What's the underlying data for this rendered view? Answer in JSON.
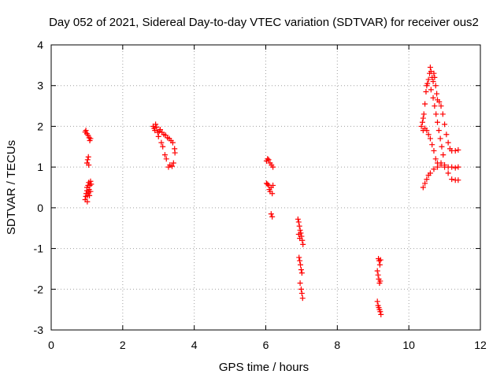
{
  "chart_data": {
    "type": "scatter",
    "title": "Day 052 of 2021, Sidereal Day-to-day VTEC variation (SDTVAR) for receiver ous2",
    "xlabel": "GPS time / hours",
    "ylabel": "SDTVAR / TECUs",
    "xlim": [
      0,
      12
    ],
    "ylim": [
      -3,
      4
    ],
    "xticks": [
      "0",
      "2",
      "4",
      "6",
      "8",
      "10",
      "12"
    ],
    "yticks": [
      "-3",
      "-2",
      "-1",
      "0",
      "1",
      "2",
      "3",
      "4"
    ],
    "grid": true,
    "marker": "plus",
    "color": "#ff0000",
    "series": [
      {
        "values": [
          [
            0.95,
            1.86
          ],
          [
            0.97,
            1.9
          ],
          [
            1.0,
            1.82
          ],
          [
            1.03,
            1.78
          ],
          [
            1.06,
            1.72
          ],
          [
            1.08,
            1.65
          ],
          [
            1.1,
            1.7
          ],
          [
            1.0,
            1.1
          ],
          [
            1.02,
            1.18
          ],
          [
            1.04,
            1.25
          ],
          [
            1.05,
            1.05
          ],
          [
            0.95,
            0.2
          ],
          [
            0.97,
            0.28
          ],
          [
            0.98,
            0.35
          ],
          [
            1.0,
            0.42
          ],
          [
            1.0,
            0.5
          ],
          [
            1.01,
            0.15
          ],
          [
            1.02,
            0.3
          ],
          [
            1.03,
            0.55
          ],
          [
            1.04,
            0.38
          ],
          [
            1.05,
            0.62
          ],
          [
            1.06,
            0.45
          ],
          [
            1.07,
            0.3
          ],
          [
            1.08,
            0.55
          ],
          [
            1.1,
            0.65
          ],
          [
            1.1,
            0.4
          ],
          [
            1.12,
            0.58
          ],
          [
            2.85,
            2.0
          ],
          [
            2.88,
            1.95
          ],
          [
            2.9,
            1.9
          ],
          [
            2.92,
            2.05
          ],
          [
            2.95,
            1.98
          ],
          [
            2.98,
            1.85
          ],
          [
            3.0,
            1.75
          ],
          [
            3.02,
            1.88
          ],
          [
            3.05,
            1.92
          ],
          [
            3.08,
            1.6
          ],
          [
            3.1,
            1.85
          ],
          [
            3.12,
            1.5
          ],
          [
            3.15,
            1.8
          ],
          [
            3.18,
            1.3
          ],
          [
            3.2,
            1.78
          ],
          [
            3.22,
            1.2
          ],
          [
            3.25,
            1.72
          ],
          [
            3.28,
            1.0
          ],
          [
            3.3,
            1.7
          ],
          [
            3.32,
            1.05
          ],
          [
            3.35,
            1.65
          ],
          [
            3.38,
            1.02
          ],
          [
            3.4,
            1.6
          ],
          [
            3.42,
            1.1
          ],
          [
            3.45,
            1.45
          ],
          [
            3.46,
            1.35
          ],
          [
            6.02,
            1.15
          ],
          [
            6.05,
            1.2
          ],
          [
            6.08,
            1.18
          ],
          [
            6.12,
            1.1
          ],
          [
            6.16,
            1.05
          ],
          [
            6.2,
            1.0
          ],
          [
            6.02,
            0.6
          ],
          [
            6.05,
            0.58
          ],
          [
            6.08,
            0.55
          ],
          [
            6.1,
            0.45
          ],
          [
            6.12,
            0.4
          ],
          [
            6.15,
            0.5
          ],
          [
            6.18,
            0.35
          ],
          [
            6.2,
            0.55
          ],
          [
            6.15,
            -0.15
          ],
          [
            6.18,
            -0.22
          ],
          [
            6.9,
            -0.28
          ],
          [
            6.92,
            -0.35
          ],
          [
            6.94,
            -0.45
          ],
          [
            6.96,
            -0.55
          ],
          [
            6.98,
            -0.62
          ],
          [
            7.0,
            -0.7
          ],
          [
            7.02,
            -0.8
          ],
          [
            7.04,
            -0.9
          ],
          [
            6.92,
            -0.65
          ],
          [
            6.95,
            -0.75
          ],
          [
            6.93,
            -1.22
          ],
          [
            6.95,
            -1.3
          ],
          [
            6.97,
            -1.4
          ],
          [
            6.99,
            -1.52
          ],
          [
            7.01,
            -1.6
          ],
          [
            6.96,
            -1.85
          ],
          [
            6.99,
            -2.0
          ],
          [
            7.01,
            -2.1
          ],
          [
            7.03,
            -2.22
          ],
          [
            9.15,
            -1.25
          ],
          [
            9.17,
            -1.3
          ],
          [
            9.19,
            -1.4
          ],
          [
            9.21,
            -1.28
          ],
          [
            9.12,
            -1.55
          ],
          [
            9.14,
            -1.65
          ],
          [
            9.16,
            -1.75
          ],
          [
            9.18,
            -1.85
          ],
          [
            9.2,
            -1.8
          ],
          [
            9.12,
            -2.3
          ],
          [
            9.14,
            -2.4
          ],
          [
            9.16,
            -2.45
          ],
          [
            9.18,
            -2.5
          ],
          [
            9.2,
            -2.55
          ],
          [
            9.22,
            -2.62
          ],
          [
            10.35,
            2.0
          ],
          [
            10.38,
            2.1
          ],
          [
            10.4,
            2.2
          ],
          [
            10.42,
            2.3
          ],
          [
            10.45,
            2.55
          ],
          [
            10.48,
            2.85
          ],
          [
            10.5,
            3.0
          ],
          [
            10.52,
            3.05
          ],
          [
            10.55,
            3.15
          ],
          [
            10.58,
            3.3
          ],
          [
            10.6,
            3.45
          ],
          [
            10.62,
            3.35
          ],
          [
            10.65,
            3.2
          ],
          [
            10.68,
            3.1
          ],
          [
            10.7,
            3.3
          ],
          [
            10.72,
            3.2
          ],
          [
            10.75,
            3.0
          ],
          [
            10.78,
            2.8
          ],
          [
            10.8,
            2.65
          ],
          [
            10.85,
            2.6
          ],
          [
            10.9,
            2.5
          ],
          [
            10.95,
            2.3
          ],
          [
            11.0,
            2.05
          ],
          [
            11.05,
            1.8
          ],
          [
            11.1,
            1.6
          ],
          [
            11.15,
            1.45
          ],
          [
            11.2,
            1.4
          ],
          [
            11.3,
            1.4
          ],
          [
            11.38,
            1.42
          ],
          [
            10.4,
            1.9
          ],
          [
            10.45,
            1.95
          ],
          [
            10.5,
            1.9
          ],
          [
            10.55,
            1.8
          ],
          [
            10.6,
            1.7
          ],
          [
            10.65,
            1.55
          ],
          [
            10.7,
            1.4
          ],
          [
            10.75,
            1.2
          ],
          [
            10.8,
            1.1
          ],
          [
            10.9,
            1.05
          ],
          [
            11.0,
            1.0
          ],
          [
            11.1,
            0.85
          ],
          [
            11.2,
            0.7
          ],
          [
            11.3,
            0.68
          ],
          [
            11.38,
            0.68
          ],
          [
            10.4,
            0.5
          ],
          [
            10.45,
            0.6
          ],
          [
            10.5,
            0.7
          ],
          [
            10.55,
            0.8
          ],
          [
            10.6,
            0.85
          ],
          [
            10.7,
            0.95
          ],
          [
            10.8,
            1.0
          ],
          [
            10.9,
            1.1
          ],
          [
            11.0,
            1.05
          ],
          [
            11.1,
            1.0
          ],
          [
            11.2,
            1.0
          ],
          [
            11.3,
            0.98
          ],
          [
            11.38,
            1.0
          ],
          [
            10.62,
            2.9
          ],
          [
            10.68,
            2.7
          ],
          [
            10.72,
            2.5
          ],
          [
            10.76,
            2.3
          ],
          [
            10.8,
            2.1
          ],
          [
            10.84,
            1.9
          ],
          [
            10.88,
            1.7
          ],
          [
            10.92,
            1.5
          ],
          [
            10.96,
            1.3
          ]
        ]
      }
    ]
  }
}
